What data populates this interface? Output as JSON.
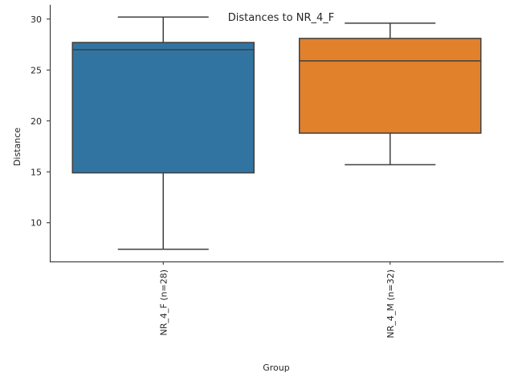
{
  "chart_data": {
    "type": "box",
    "title": "Distances to NR_4_F",
    "xlabel": "Group",
    "ylabel": "Distance",
    "ylim": [
      6.2,
      31.4
    ],
    "yticks": [
      10,
      15,
      20,
      25,
      30
    ],
    "grid": false,
    "categories": [
      "NR_4_F (n=28)",
      "NR_4_M (n=32)"
    ],
    "boxes": [
      {
        "name": "NR_4_F (n=28)",
        "color": "#3274a1",
        "whisker_low": 7.4,
        "q1": 14.9,
        "median": 27.0,
        "q3": 27.7,
        "whisker_high": 30.2
      },
      {
        "name": "NR_4_M (n=32)",
        "color": "#e1812c",
        "whisker_low": 15.7,
        "q1": 18.8,
        "median": 25.9,
        "q3": 28.1,
        "whisker_high": 29.6
      }
    ]
  }
}
